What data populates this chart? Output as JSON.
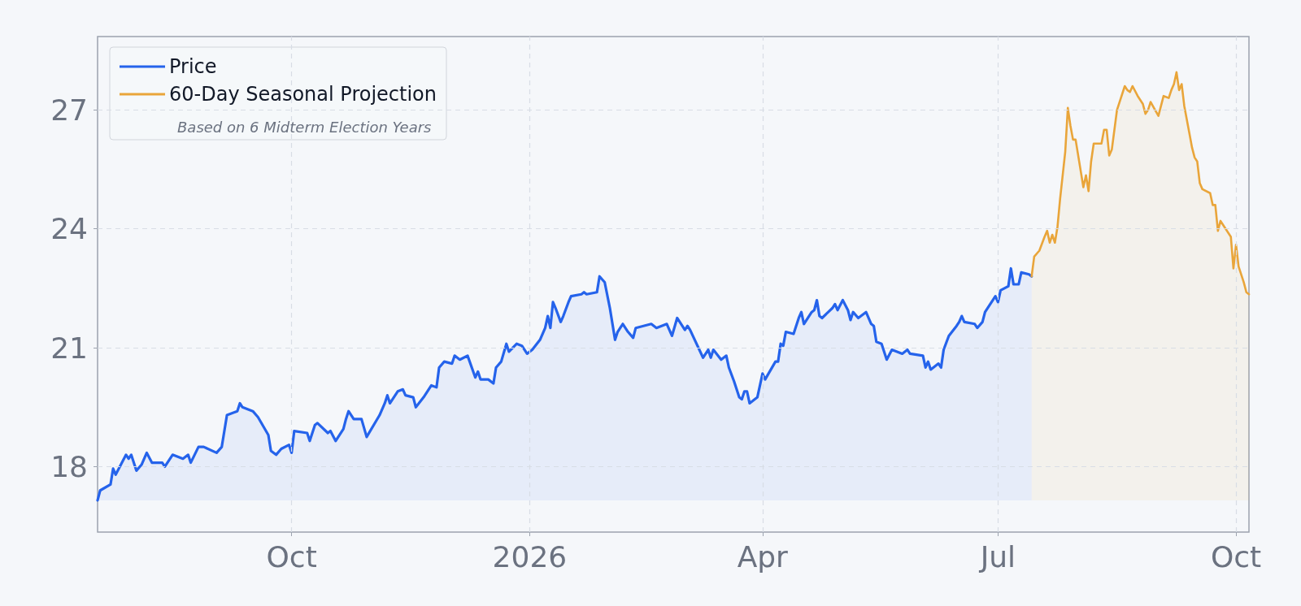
{
  "chart_data": {
    "type": "area",
    "xlim": [
      "2025-07-18",
      "2026-10-06"
    ],
    "xticks": [
      {
        "value": "2025-10-01",
        "label": "Oct"
      },
      {
        "value": "2026-01-01",
        "label": "2026"
      },
      {
        "value": "2026-04-01",
        "label": "Apr"
      },
      {
        "value": "2026-07-01",
        "label": "Jul"
      },
      {
        "value": "2026-10-01",
        "label": "Oct"
      }
    ],
    "ylim": [
      16.35,
      28.85
    ],
    "yticks": [
      18,
      21,
      24,
      27
    ],
    "grid": true,
    "legend": "top left",
    "marker": "none",
    "line_style": "solid",
    "annotations": [
      "Based on 6 Midterm Election Years"
    ],
    "series": [
      {
        "name": "Price",
        "color": "#2563eb",
        "x": [
          "2025-07-18",
          "2025-07-19",
          "2025-07-23",
          "2025-07-24",
          "2025-07-25",
          "2025-07-27",
          "2025-07-29",
          "2025-07-30",
          "2025-07-31",
          "2025-08-02",
          "2025-08-04",
          "2025-08-06",
          "2025-08-08",
          "2025-08-12",
          "2025-08-13",
          "2025-08-16",
          "2025-08-18",
          "2025-08-20",
          "2025-08-22",
          "2025-08-23",
          "2025-08-26",
          "2025-08-28",
          "2025-09-02",
          "2025-09-04",
          "2025-09-06",
          "2025-09-10",
          "2025-09-11",
          "2025-09-12",
          "2025-09-16",
          "2025-09-18",
          "2025-09-22",
          "2025-09-23",
          "2025-09-25",
          "2025-09-27",
          "2025-09-30",
          "2025-10-01",
          "2025-10-02",
          "2025-10-07",
          "2025-10-08",
          "2025-10-10",
          "2025-10-11",
          "2025-10-15",
          "2025-10-16",
          "2025-10-18",
          "2025-10-21",
          "2025-10-22",
          "2025-10-23",
          "2025-10-25",
          "2025-10-28",
          "2025-10-30",
          "2025-11-04",
          "2025-11-06",
          "2025-11-07",
          "2025-11-08",
          "2025-11-11",
          "2025-11-13",
          "2025-11-14",
          "2025-11-17",
          "2025-11-18",
          "2025-11-21",
          "2025-11-24",
          "2025-11-26",
          "2025-11-27",
          "2025-11-29",
          "2025-12-02",
          "2025-12-03",
          "2025-12-05",
          "2025-12-08",
          "2025-12-11",
          "2025-12-12",
          "2025-12-13",
          "2025-12-16",
          "2025-12-18",
          "2025-12-19",
          "2025-12-21",
          "2025-12-23",
          "2025-12-24",
          "2025-12-27",
          "2025-12-29",
          "2025-12-31",
          "2026-01-02",
          "2026-01-05",
          "2026-01-07",
          "2026-01-08",
          "2026-01-09",
          "2026-01-10",
          "2026-01-11",
          "2026-01-13",
          "2026-01-14",
          "2026-01-16",
          "2026-01-17",
          "2026-01-21",
          "2026-01-22",
          "2026-01-23",
          "2026-01-27",
          "2026-01-28",
          "2026-01-30",
          "2026-02-01",
          "2026-02-03",
          "2026-02-04",
          "2026-02-06",
          "2026-02-08",
          "2026-02-10",
          "2026-02-11",
          "2026-02-14",
          "2026-02-17",
          "2026-02-19",
          "2026-02-23",
          "2026-02-25",
          "2026-02-27",
          "2026-03-02",
          "2026-03-03",
          "2026-03-04",
          "2026-03-09",
          "2026-03-11",
          "2026-03-12",
          "2026-03-13",
          "2026-03-16",
          "2026-03-18",
          "2026-03-19",
          "2026-03-21",
          "2026-03-23",
          "2026-03-24",
          "2026-03-25",
          "2026-03-26",
          "2026-03-27",
          "2026-03-30",
          "2026-04-01",
          "2026-04-02",
          "2026-04-06",
          "2026-04-07",
          "2026-04-08",
          "2026-04-09",
          "2026-04-10",
          "2026-04-13",
          "2026-04-15",
          "2026-04-16",
          "2026-04-17",
          "2026-04-20",
          "2026-04-21",
          "2026-04-22",
          "2026-04-23",
          "2026-04-24",
          "2026-04-28",
          "2026-04-29",
          "2026-04-30",
          "2026-05-02",
          "2026-05-04",
          "2026-05-05",
          "2026-05-06",
          "2026-05-08",
          "2026-05-11",
          "2026-05-13",
          "2026-05-14",
          "2026-05-15",
          "2026-05-17",
          "2026-05-19",
          "2026-05-21",
          "2026-05-25",
          "2026-05-27",
          "2026-05-28",
          "2026-06-02",
          "2026-06-03",
          "2026-06-04",
          "2026-06-05",
          "2026-06-08",
          "2026-06-09",
          "2026-06-10",
          "2026-06-12",
          "2026-06-15",
          "2026-06-16",
          "2026-06-17",
          "2026-06-18",
          "2026-06-22",
          "2026-06-23",
          "2026-06-25",
          "2026-06-26",
          "2026-06-30",
          "2026-07-01",
          "2026-07-02",
          "2026-07-05",
          "2026-07-06",
          "2026-07-07",
          "2026-07-09",
          "2026-07-10",
          "2026-07-13",
          "2026-07-14"
        ],
        "values": [
          17.15,
          17.4,
          17.55,
          17.95,
          17.8,
          18.05,
          18.3,
          18.2,
          18.3,
          17.9,
          18.05,
          18.35,
          18.1,
          18.1,
          18.0,
          18.3,
          18.25,
          18.2,
          18.3,
          18.1,
          18.5,
          18.5,
          18.35,
          18.5,
          19.3,
          19.4,
          19.6,
          19.5,
          19.4,
          19.25,
          18.8,
          18.4,
          18.3,
          18.45,
          18.55,
          18.35,
          18.9,
          18.85,
          18.65,
          19.05,
          19.1,
          18.85,
          18.9,
          18.65,
          18.95,
          19.2,
          19.4,
          19.2,
          19.2,
          18.75,
          19.3,
          19.6,
          19.8,
          19.6,
          19.9,
          19.95,
          19.8,
          19.75,
          19.5,
          19.75,
          20.05,
          20.0,
          20.5,
          20.65,
          20.6,
          20.8,
          20.7,
          20.8,
          20.25,
          20.4,
          20.2,
          20.2,
          20.1,
          20.5,
          20.65,
          21.1,
          20.9,
          21.1,
          21.05,
          20.85,
          20.95,
          21.2,
          21.5,
          21.8,
          21.5,
          22.15,
          22.0,
          21.65,
          21.8,
          22.15,
          22.3,
          22.35,
          22.4,
          22.35,
          22.4,
          22.8,
          22.65,
          22.0,
          21.2,
          21.4,
          21.6,
          21.4,
          21.25,
          21.5,
          21.55,
          21.6,
          21.5,
          21.6,
          21.3,
          21.75,
          21.45,
          21.55,
          21.45,
          20.75,
          20.95,
          20.75,
          20.95,
          20.7,
          20.8,
          20.5,
          20.15,
          19.75,
          19.7,
          19.9,
          19.9,
          19.6,
          19.75,
          20.35,
          20.2,
          20.65,
          20.65,
          21.1,
          21.05,
          21.4,
          21.35,
          21.75,
          21.9,
          21.6,
          21.9,
          21.95,
          22.2,
          21.8,
          21.75,
          22.0,
          22.1,
          21.95,
          22.2,
          21.95,
          21.7,
          21.9,
          21.75,
          21.9,
          21.6,
          21.55,
          21.15,
          21.1,
          20.7,
          20.95,
          20.85,
          20.95,
          20.85,
          20.8,
          20.5,
          20.65,
          20.45,
          20.6,
          20.5,
          20.95,
          21.3,
          21.55,
          21.65,
          21.8,
          21.65,
          21.6,
          21.5,
          21.65,
          21.9,
          22.3,
          22.15,
          22.45,
          22.55,
          23.0,
          22.6,
          22.6,
          22.9,
          22.85,
          22.8
        ]
      },
      {
        "name": "60-Day Seasonal Projection",
        "color": "#e9a53a",
        "x": [
          "2026-07-14",
          "2026-07-15",
          "2026-07-17",
          "2026-07-19",
          "2026-07-20",
          "2026-07-21",
          "2026-07-22",
          "2026-07-23",
          "2026-07-24",
          "2026-07-25",
          "2026-07-27",
          "2026-07-28",
          "2026-07-29",
          "2026-07-30",
          "2026-07-31",
          "2026-08-03",
          "2026-08-04",
          "2026-08-05",
          "2026-08-06",
          "2026-08-07",
          "2026-08-10",
          "2026-08-11",
          "2026-08-12",
          "2026-08-13",
          "2026-08-14",
          "2026-08-16",
          "2026-08-19",
          "2026-08-20",
          "2026-08-21",
          "2026-08-22",
          "2026-08-24",
          "2026-08-26",
          "2026-08-27",
          "2026-08-28",
          "2026-08-29",
          "2026-09-01",
          "2026-09-02",
          "2026-09-03",
          "2026-09-05",
          "2026-09-06",
          "2026-09-07",
          "2026-09-08",
          "2026-09-09",
          "2026-09-10",
          "2026-09-11",
          "2026-09-13",
          "2026-09-14",
          "2026-09-15",
          "2026-09-16",
          "2026-09-17",
          "2026-09-18",
          "2026-09-21",
          "2026-09-22",
          "2026-09-23",
          "2026-09-24",
          "2026-09-25",
          "2026-09-27",
          "2026-09-29",
          "2026-09-30",
          "2026-10-01",
          "2026-10-02",
          "2026-10-04",
          "2026-10-05",
          "2026-10-06"
        ],
        "values": [
          22.8,
          23.3,
          23.45,
          23.8,
          23.95,
          23.65,
          23.85,
          23.65,
          24.05,
          24.75,
          25.95,
          27.05,
          26.6,
          26.25,
          26.25,
          25.05,
          25.35,
          24.95,
          25.7,
          26.15,
          26.15,
          26.5,
          26.5,
          25.85,
          26.0,
          27.0,
          27.6,
          27.5,
          27.45,
          27.6,
          27.35,
          27.15,
          26.9,
          27.0,
          27.2,
          26.85,
          27.1,
          27.35,
          27.3,
          27.5,
          27.65,
          27.95,
          27.5,
          27.65,
          27.1,
          26.4,
          26.05,
          25.8,
          25.7,
          25.15,
          25.0,
          24.9,
          24.6,
          24.6,
          23.95,
          24.2,
          24.0,
          23.8,
          23.0,
          23.6,
          23.05,
          22.65,
          22.4,
          22.35
        ]
      }
    ]
  }
}
